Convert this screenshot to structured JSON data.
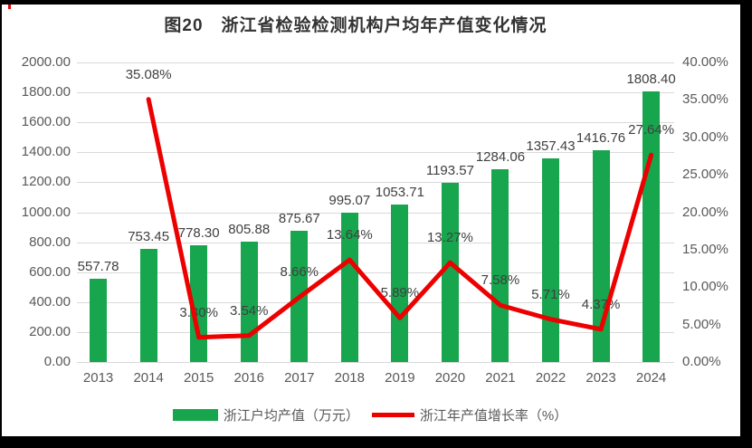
{
  "title": "图20　浙江省检验检测机构户均年产值变化情况",
  "legend": [
    {
      "label": "浙江户均产值（万元）",
      "type": "bar",
      "color": "#17a54d"
    },
    {
      "label": "浙江年产值增长率（%）",
      "type": "line",
      "color": "#ec0000"
    }
  ],
  "colors": {
    "bar_green": "#17a54d",
    "line_red": "#ec0000",
    "gridline": "#d9d9d9",
    "axis_text": "#595959",
    "data_label": "#404040",
    "frame_black": "#000000"
  },
  "chart_data": {
    "type": "bar",
    "subtype": "bar+line combo, dual axis",
    "title": "图20　浙江省检验检测机构户均年产值变化情况",
    "categories": [
      "2013",
      "2014",
      "2015",
      "2016",
      "2017",
      "2018",
      "2019",
      "2020",
      "2021",
      "2022",
      "2023",
      "2024"
    ],
    "series": [
      {
        "name": "浙江户均产值（万元）",
        "type": "bar",
        "axis": "left",
        "color": "#17a54d",
        "values": [
          557.78,
          753.45,
          778.3,
          805.88,
          875.67,
          995.07,
          1053.71,
          1193.57,
          1284.06,
          1357.43,
          1416.76,
          1808.4
        ],
        "labels": [
          "557.78",
          "753.45",
          "778.30",
          "805.88",
          "875.67",
          "995.07",
          "1053.71",
          "1193.57",
          "1284.06",
          "1357.43",
          "1416.76",
          "1808.40"
        ]
      },
      {
        "name": "浙江年产值增长率（%）",
        "type": "line",
        "axis": "right",
        "color": "#ec0000",
        "values": [
          null,
          35.08,
          3.3,
          3.54,
          8.66,
          13.64,
          5.89,
          13.27,
          7.58,
          5.71,
          4.37,
          27.64
        ],
        "labels": [
          null,
          "35.08%",
          "3.30%",
          "3.54%",
          "8.66%",
          "13.64%",
          "5.89%",
          "13.27%",
          "7.58%",
          "5.71%",
          "4.37%",
          "27.64%"
        ]
      }
    ],
    "left_axis": {
      "min": 0,
      "max": 2000,
      "step": 200,
      "tick_labels": [
        "0.00",
        "200.00",
        "400.00",
        "600.00",
        "800.00",
        "1000.00",
        "1200.00",
        "1400.00",
        "1600.00",
        "1800.00",
        "2000.00"
      ]
    },
    "right_axis": {
      "min": 0,
      "max": 40,
      "step": 5,
      "tick_labels": [
        "0.00%",
        "5.00%",
        "10.00%",
        "15.00%",
        "20.00%",
        "25.00%",
        "30.00%",
        "35.00%",
        "40.00%"
      ]
    },
    "grid": true,
    "legend_position": "bottom"
  }
}
